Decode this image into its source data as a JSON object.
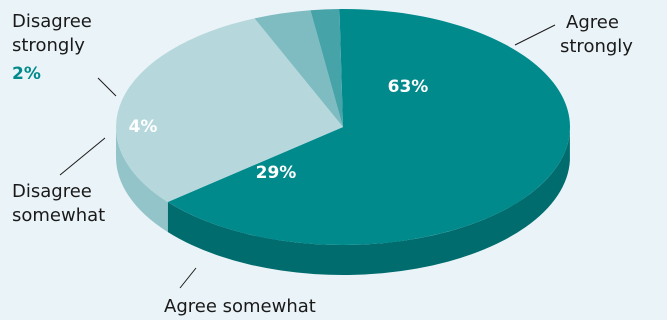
{
  "chart_data": {
    "type": "pie",
    "slices": [
      {
        "label": "Agree strongly",
        "value": 63,
        "pct_label": "63%",
        "color": "#008a8c",
        "side_color": "#006c6e"
      },
      {
        "label": "Agree somewhat",
        "value": 29,
        "pct_label": "29%",
        "color": "#b6d8dc",
        "side_color": "#93c4c9"
      },
      {
        "label": "Disagree somewhat",
        "value": 4,
        "pct_label": "4%",
        "color": "#7fbcc1",
        "side_color": "#62a9af"
      },
      {
        "label": "Disagree strongly",
        "value": 2,
        "pct_label": "2%",
        "color": "#46a3a8",
        "side_color": "#2f8c91"
      }
    ],
    "label_lines": {
      "agree_strongly": [
        "Agree",
        "strongly"
      ],
      "agree_somewhat": [
        "Agree somewhat"
      ],
      "disagree_somewhat": [
        "Disagree",
        "somewhat"
      ],
      "disagree_strongly": [
        "Disagree",
        "strongly"
      ]
    },
    "accent_color": "#008a8c",
    "background": "#eaf3f7",
    "style": "3d-pie"
  }
}
